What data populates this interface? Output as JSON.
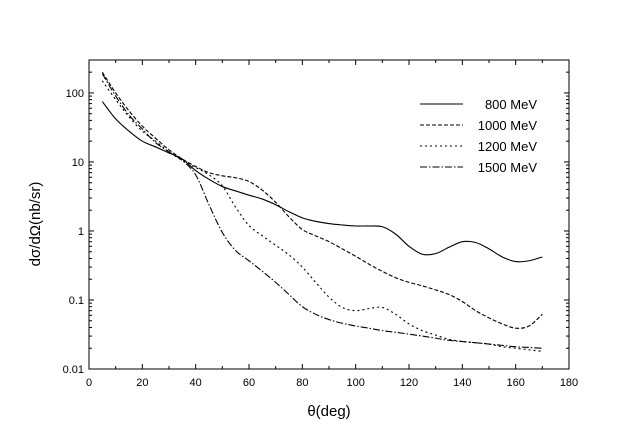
{
  "chart_data": {
    "type": "line",
    "title": "",
    "xlabel": "θ(deg)",
    "ylabel": "dσ/dΩ(nb/sr)",
    "xlim": [
      0,
      180
    ],
    "ylim": [
      0.01,
      300
    ],
    "yscale": "log",
    "grid": false,
    "legend_position": "top-right",
    "x_ticks": [
      "0",
      "20",
      "40",
      "60",
      "80",
      "100",
      "120",
      "140",
      "160",
      "180"
    ],
    "y_ticks": [
      "0.01",
      "0.1",
      "1",
      "10",
      "100"
    ],
    "series": [
      {
        "name": "800 MeV",
        "dash": "solid",
        "x": [
          5,
          10,
          15,
          20,
          25,
          30,
          35,
          40,
          45,
          50,
          55,
          60,
          65,
          70,
          75,
          80,
          85,
          90,
          95,
          100,
          105,
          110,
          115,
          120,
          125,
          130,
          135,
          140,
          145,
          150,
          155,
          160,
          165,
          170
        ],
        "y": [
          75,
          42,
          28,
          20,
          16.5,
          13.5,
          11,
          7.5,
          5.6,
          4.4,
          3.8,
          3.3,
          2.9,
          2.4,
          1.9,
          1.55,
          1.38,
          1.28,
          1.22,
          1.18,
          1.18,
          1.15,
          0.9,
          0.6,
          0.46,
          0.47,
          0.58,
          0.7,
          0.68,
          0.55,
          0.42,
          0.36,
          0.37,
          0.42
        ]
      },
      {
        "name": "1000 MeV",
        "dash": "dashed",
        "x": [
          5,
          10,
          15,
          20,
          25,
          30,
          35,
          40,
          45,
          50,
          55,
          60,
          65,
          70,
          75,
          80,
          85,
          90,
          95,
          100,
          105,
          110,
          115,
          120,
          125,
          130,
          135,
          140,
          145,
          150,
          155,
          160,
          165,
          170
        ],
        "y": [
          200,
          100,
          55,
          33,
          22,
          15,
          11,
          8.6,
          7,
          6.3,
          5.9,
          5.2,
          3.9,
          2.6,
          1.6,
          1.05,
          0.85,
          0.7,
          0.55,
          0.43,
          0.33,
          0.26,
          0.21,
          0.18,
          0.16,
          0.14,
          0.12,
          0.095,
          0.07,
          0.055,
          0.045,
          0.039,
          0.042,
          0.062
        ]
      },
      {
        "name": "1200 MeV",
        "dash": "dotted",
        "x": [
          5,
          10,
          15,
          20,
          25,
          30,
          35,
          40,
          45,
          50,
          55,
          60,
          65,
          70,
          75,
          80,
          85,
          90,
          95,
          100,
          105,
          110,
          115,
          120,
          125,
          130,
          135,
          140,
          145,
          150,
          155,
          160,
          165,
          170
        ],
        "y": [
          150,
          80,
          45,
          28,
          20,
          14,
          10.5,
          8.3,
          6.5,
          4.5,
          2.2,
          1.2,
          0.85,
          0.62,
          0.45,
          0.3,
          0.18,
          0.11,
          0.078,
          0.07,
          0.075,
          0.078,
          0.062,
          0.045,
          0.036,
          0.031,
          0.027,
          0.025,
          0.024,
          0.023,
          0.021,
          0.02,
          0.019,
          0.018
        ]
      },
      {
        "name": "1500 MeV",
        "dash": "dash-dot",
        "x": [
          5,
          10,
          15,
          20,
          25,
          30,
          35,
          40,
          45,
          50,
          55,
          60,
          65,
          70,
          75,
          80,
          85,
          90,
          95,
          100,
          105,
          110,
          115,
          120,
          125,
          130,
          135,
          140,
          145,
          150,
          155,
          160,
          165,
          170
        ],
        "y": [
          190,
          90,
          48,
          30,
          19,
          14,
          10.5,
          6.5,
          2.4,
          0.95,
          0.52,
          0.37,
          0.26,
          0.18,
          0.12,
          0.08,
          0.062,
          0.052,
          0.046,
          0.042,
          0.039,
          0.036,
          0.034,
          0.032,
          0.03,
          0.028,
          0.026,
          0.025,
          0.024,
          0.023,
          0.022,
          0.021,
          0.0205,
          0.02
        ]
      }
    ]
  }
}
